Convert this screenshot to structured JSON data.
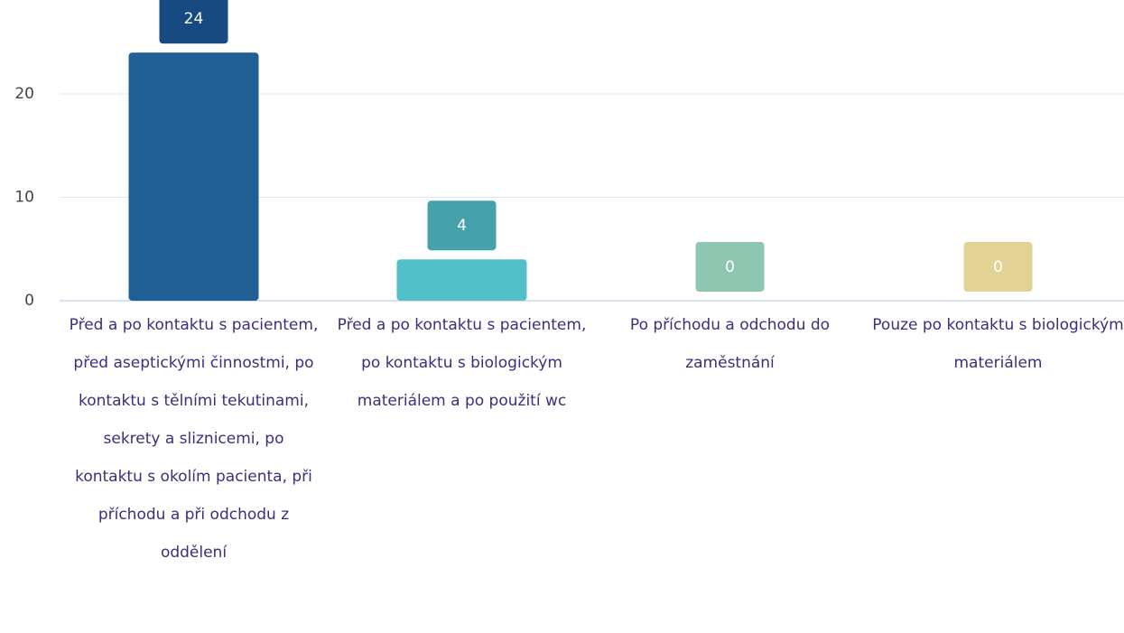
{
  "chart_data": {
    "type": "bar",
    "categories": [
      "Před a po kontaktu s pacientem, před aseptickými činnostmi, po kontaktu s tělními tekutinami, sekrety a sliznicemi, po kontaktu s okolím pacienta, při příchodu a při odchodu z oddělení",
      "Před a po kontaktu s pacientem, po kontaktu s biologickým materiálem a po použití wc",
      "Po příchodu a odchodu do zaměstnání",
      "Pouze po kontaktu s biologickým materiálem"
    ],
    "values": [
      24,
      4,
      0,
      0
    ],
    "colors": [
      "#1f5f96",
      "#52c0c8",
      "#8ec6b2",
      "#e2d294"
    ],
    "label_colors": [
      "#174a80",
      "#45a2ab",
      "#8ec6b2",
      "#e2d294"
    ],
    "ylim": [
      0,
      29
    ],
    "yticks": [
      0,
      10,
      20
    ],
    "grid": true
  }
}
